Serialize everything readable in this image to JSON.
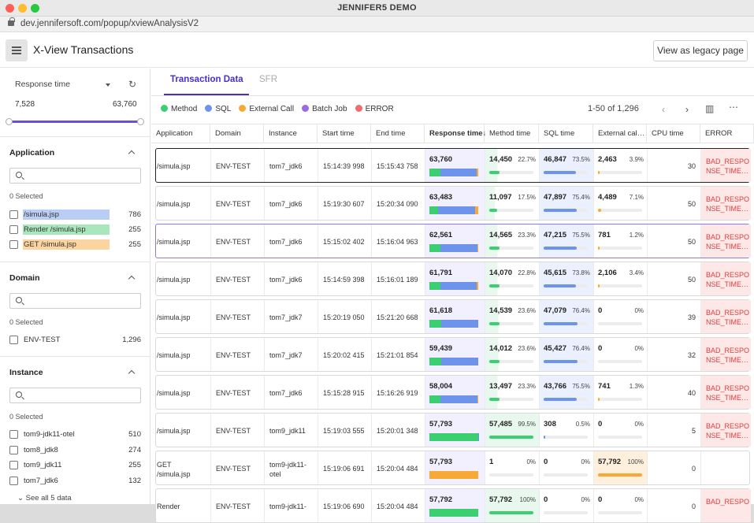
{
  "window": {
    "title": "JENNIFER5 DEMO",
    "url": "dev.jennifersoft.com/popup/xviewAnalysisV2"
  },
  "header": {
    "title": "X-View Transactions",
    "legacy_button": "View as legacy page"
  },
  "sidebar": {
    "metric_select": "Response time",
    "range_min": "7,528",
    "range_max": "63,760",
    "sections": {
      "application": {
        "title": "Application",
        "selected": "0 Selected",
        "items": [
          {
            "label": "/simula.jsp",
            "count": "786"
          },
          {
            "label": "Render /simula.jsp",
            "count": "255"
          },
          {
            "label": "GET /simula.jsp",
            "count": "255"
          }
        ]
      },
      "domain": {
        "title": "Domain",
        "selected": "0 Selected",
        "items": [
          {
            "label": "ENV-TEST",
            "count": "1,296"
          }
        ]
      },
      "instance": {
        "title": "Instance",
        "selected": "0 Selected",
        "items": [
          {
            "label": "tom9-jdk11-otel",
            "count": "510"
          },
          {
            "label": "tom8_jdk8",
            "count": "274"
          },
          {
            "label": "tom9_jdk11",
            "count": "255"
          },
          {
            "label": "tom7_jdk6",
            "count": "132"
          }
        ],
        "see_all": "See all 5 data"
      }
    }
  },
  "tabs": [
    {
      "label": "Transaction Data"
    },
    {
      "label": "SFR"
    }
  ],
  "legend": [
    {
      "label": "Method",
      "color": "#3ccf72"
    },
    {
      "label": "SQL",
      "color": "#6e93ea"
    },
    {
      "label": "External Call",
      "color": "#f7a936"
    },
    {
      "label": "Batch Job",
      "color": "#9b6be0"
    },
    {
      "label": "ERROR",
      "color": "#ef6d6d"
    }
  ],
  "pager": {
    "text": "1-50 of 1,296"
  },
  "columns": [
    "Application",
    "Domain",
    "Instance",
    "Start time",
    "End time",
    "Response time↓",
    "Method time",
    "SQL time",
    "External cal…",
    "CPU time",
    "ERROR"
  ],
  "rows": [
    {
      "app": "/simula.jsp",
      "domain": "ENV-TEST",
      "instance": "tom7_jdk6",
      "start": "15:14:39 998",
      "end": "15:15:43 758",
      "rt": "63,760",
      "m": "14,450",
      "mp": "22.7%",
      "mf": 0.227,
      "s": "46,847",
      "sp": "73.5%",
      "sf": 0.735,
      "e": "2,463",
      "ep": "3.9%",
      "ef": 0.039,
      "cpu": "30",
      "err": "BAD_RESPO NSE_TIME…"
    },
    {
      "app": "/simula.jsp",
      "domain": "ENV-TEST",
      "instance": "tom7_jdk6",
      "start": "15:19:30 607",
      "end": "15:20:34 090",
      "rt": "63,483",
      "m": "11,097",
      "mp": "17.5%",
      "mf": 0.175,
      "s": "47,897",
      "sp": "75.4%",
      "sf": 0.754,
      "e": "4,489",
      "ep": "7.1%",
      "ef": 0.071,
      "cpu": "50",
      "err": "BAD_RESPO NSE_TIME…"
    },
    {
      "app": "/simula.jsp",
      "domain": "ENV-TEST",
      "instance": "tom7_jdk6",
      "start": "15:15:02 402",
      "end": "15:16:04 963",
      "rt": "62,561",
      "m": "14,565",
      "mp": "23.3%",
      "mf": 0.233,
      "s": "47,215",
      "sp": "75.5%",
      "sf": 0.755,
      "e": "781",
      "ep": "1.2%",
      "ef": 0.012,
      "cpu": "50",
      "err": "BAD_RESPO NSE_TIME…"
    },
    {
      "app": "/simula.jsp",
      "domain": "ENV-TEST",
      "instance": "tom7_jdk6",
      "start": "15:14:59 398",
      "end": "15:16:01 189",
      "rt": "61,791",
      "m": "14,070",
      "mp": "22.8%",
      "mf": 0.228,
      "s": "45,615",
      "sp": "73.8%",
      "sf": 0.738,
      "e": "2,106",
      "ep": "3.4%",
      "ef": 0.034,
      "cpu": "50",
      "err": "BAD_RESPO NSE_TIME…"
    },
    {
      "app": "/simula.jsp",
      "domain": "ENV-TEST",
      "instance": "tom7_jdk7",
      "start": "15:20:19 050",
      "end": "15:21:20 668",
      "rt": "61,618",
      "m": "14,539",
      "mp": "23.6%",
      "mf": 0.236,
      "s": "47,079",
      "sp": "76.4%",
      "sf": 0.764,
      "e": "0",
      "ep": "0%",
      "ef": 0,
      "cpu": "39",
      "err": "BAD_RESPO NSE_TIME…"
    },
    {
      "app": "/simula.jsp",
      "domain": "ENV-TEST",
      "instance": "tom7_jdk7",
      "start": "15:20:02 415",
      "end": "15:21:01 854",
      "rt": "59,439",
      "m": "14,012",
      "mp": "23.6%",
      "mf": 0.236,
      "s": "45,427",
      "sp": "76.4%",
      "sf": 0.764,
      "e": "0",
      "ep": "0%",
      "ef": 0,
      "cpu": "32",
      "err": "BAD_RESPO NSE_TIME…"
    },
    {
      "app": "/simula.jsp",
      "domain": "ENV-TEST",
      "instance": "tom7_jdk6",
      "start": "15:15:28 915",
      "end": "15:16:26 919",
      "rt": "58,004",
      "m": "13,497",
      "mp": "23.3%",
      "mf": 0.233,
      "s": "43,766",
      "sp": "75.5%",
      "sf": 0.755,
      "e": "741",
      "ep": "1.3%",
      "ef": 0.013,
      "cpu": "40",
      "err": "BAD_RESPO NSE_TIME…"
    },
    {
      "app": "/simula.jsp",
      "domain": "ENV-TEST",
      "instance": "tom9_jdk11",
      "start": "15:19:03 555",
      "end": "15:20:01 348",
      "rt": "57,793",
      "m": "57,485",
      "mp": "99.5%",
      "mf": 0.995,
      "s": "308",
      "sp": "0.5%",
      "sf": 0.005,
      "e": "0",
      "ep": "0%",
      "ef": 0,
      "cpu": "5",
      "err": "BAD_RESPO NSE_TIME…"
    },
    {
      "app": "GET /simula.jsp",
      "domain": "ENV-TEST",
      "instance": "tom9-jdk11- otel",
      "start": "15:19:06 691",
      "end": "15:20:04 484",
      "rt": "57,793",
      "m": "1",
      "mp": "0%",
      "mf": 0,
      "s": "0",
      "sp": "0%",
      "sf": 0,
      "e": "57,792",
      "ep": "100%",
      "ef": 1.0,
      "cpu": "0",
      "err": ""
    },
    {
      "app": "Render",
      "domain": "ENV-TEST",
      "instance": "tom9-jdk11-",
      "start": "15:19:06 690",
      "end": "15:20:04 484",
      "rt": "57,792",
      "m": "57,792",
      "mp": "100%",
      "mf": 1.0,
      "s": "0",
      "sp": "0%",
      "sf": 0,
      "e": "0",
      "ep": "0%",
      "ef": 0,
      "cpu": "0",
      "err": "BAD_RESPO"
    }
  ]
}
